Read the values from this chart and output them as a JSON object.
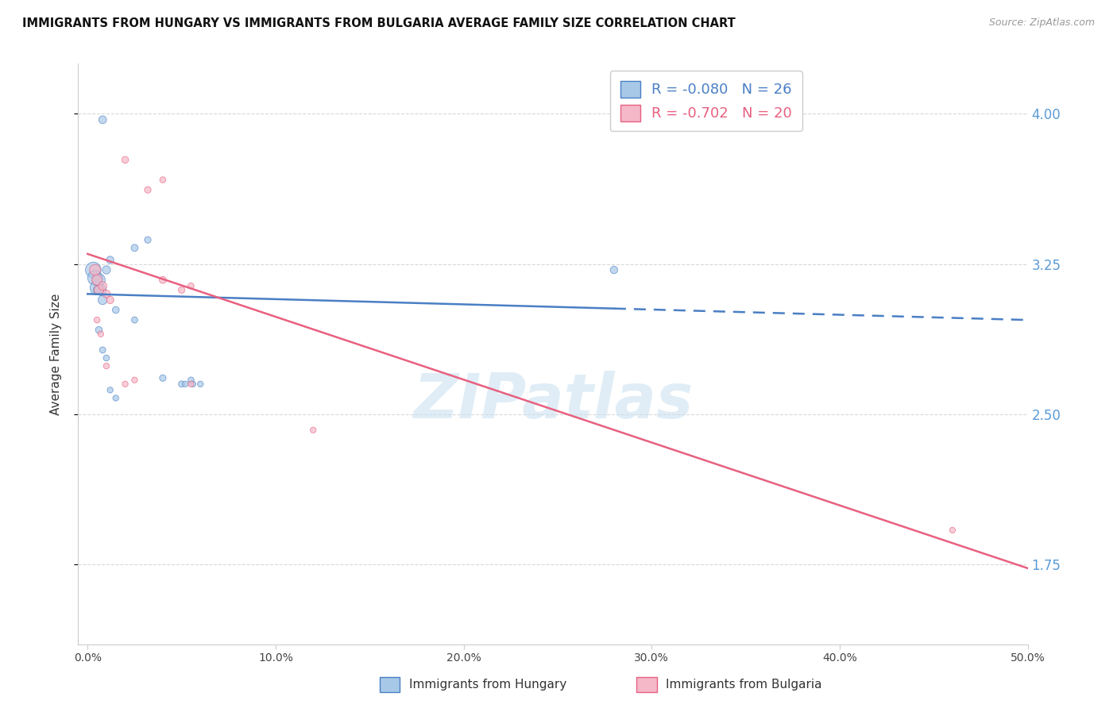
{
  "title": "IMMIGRANTS FROM HUNGARY VS IMMIGRANTS FROM BULGARIA AVERAGE FAMILY SIZE CORRELATION CHART",
  "source": "Source: ZipAtlas.com",
  "ylabel": "Average Family Size",
  "xlabel_vals": [
    0.0,
    10.0,
    20.0,
    30.0,
    40.0,
    50.0
  ],
  "yticks": [
    1.75,
    2.5,
    3.25,
    4.0
  ],
  "ylim": [
    1.35,
    4.25
  ],
  "xlim": [
    -0.5,
    50.0
  ],
  "color_hungary": "#A8C8E8",
  "color_bulgaria": "#F4B8C8",
  "color_hungary_line": "#4A7FC4",
  "color_bulgaria_line": "#E86080",
  "color_ytick": "#5B9BD5",
  "hungary_x": [
    0.8,
    2.5,
    3.2,
    0.3,
    0.4,
    0.5,
    0.6,
    0.7,
    0.8,
    1.0,
    1.2,
    1.5,
    4.0,
    5.0,
    5.5,
    6.0,
    0.5,
    0.6,
    0.8,
    1.0,
    1.2,
    1.5,
    2.5,
    28.0,
    5.2,
    5.6
  ],
  "hungary_y": [
    3.97,
    3.33,
    3.37,
    3.22,
    3.18,
    3.13,
    3.17,
    3.12,
    3.07,
    3.22,
    3.27,
    3.02,
    2.68,
    2.65,
    2.67,
    2.65,
    3.12,
    2.92,
    2.82,
    2.78,
    2.62,
    2.58,
    2.97,
    3.22,
    2.65,
    2.65
  ],
  "hungary_sizes": [
    50,
    40,
    35,
    200,
    180,
    160,
    130,
    100,
    70,
    55,
    45,
    38,
    35,
    32,
    30,
    28,
    45,
    38,
    32,
    30,
    28,
    28,
    32,
    45,
    28,
    28
  ],
  "bulgaria_x": [
    2.0,
    3.2,
    4.0,
    0.4,
    0.5,
    0.6,
    0.8,
    1.0,
    1.2,
    4.0,
    5.0,
    5.5,
    0.5,
    0.7,
    1.0,
    2.5,
    12.0,
    46.0,
    2.0,
    5.5
  ],
  "bulgaria_y": [
    3.77,
    3.62,
    3.67,
    3.22,
    3.17,
    3.12,
    3.14,
    3.1,
    3.07,
    3.17,
    3.12,
    3.14,
    2.97,
    2.9,
    2.74,
    2.67,
    2.42,
    1.92,
    2.65,
    2.65
  ],
  "bulgaria_sizes": [
    38,
    35,
    30,
    100,
    90,
    75,
    60,
    50,
    45,
    40,
    35,
    30,
    30,
    28,
    28,
    28,
    28,
    28,
    28,
    28
  ],
  "hungary_line_y_start": 3.1,
  "hungary_line_y_end": 2.97,
  "hungary_line_solid_end": 28.0,
  "bulgaria_line_y_start": 3.3,
  "bulgaria_line_y_end": 1.73,
  "background_color": "#FFFFFF",
  "grid_color": "#D8D8D8"
}
